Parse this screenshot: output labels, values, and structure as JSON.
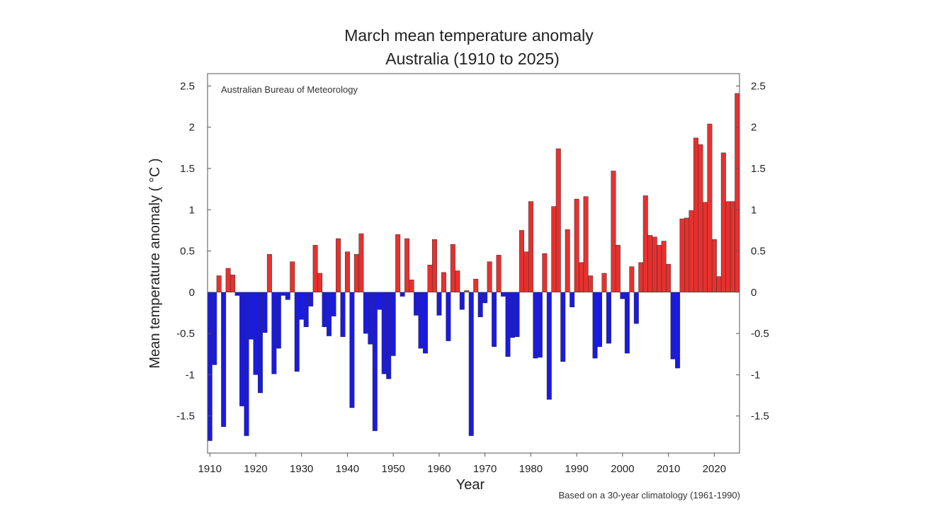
{
  "chart_data": {
    "type": "bar",
    "title": [
      "March mean temperature anomaly",
      "Australia (1910 to 2025)"
    ],
    "xlabel": "Year",
    "ylabel": "Mean temperature anomaly ( °C )",
    "source": "Australian Bureau of Meteorology",
    "footnote": "Based on a 30-year climatology (1961-1990)",
    "xlim": [
      1909.5,
      2025.5
    ],
    "ylim": [
      -1.95,
      2.65
    ],
    "x_ticks": [
      {
        "value": 1910,
        "label": "1910"
      },
      {
        "value": 1920,
        "label": "1920"
      },
      {
        "value": 1930,
        "label": "1930"
      },
      {
        "value": 1940,
        "label": "1940"
      },
      {
        "value": 1950,
        "label": "1950"
      },
      {
        "value": 1960,
        "label": "1960"
      },
      {
        "value": 1970,
        "label": "1970"
      },
      {
        "value": 1980,
        "label": "1980"
      },
      {
        "value": 1990,
        "label": "1990"
      },
      {
        "value": 2000,
        "label": "2000"
      },
      {
        "value": 2010,
        "label": "2010"
      },
      {
        "value": 2020,
        "label": "2020"
      }
    ],
    "y_ticks": [
      {
        "value": 2.5,
        "label": "2.5"
      },
      {
        "value": 2,
        "label": "2"
      },
      {
        "value": 1.5,
        "label": "1.5"
      },
      {
        "value": 1,
        "label": "1"
      },
      {
        "value": 0.5,
        "label": "0.5"
      },
      {
        "value": 0,
        "label": "0"
      },
      {
        "value": -0.5,
        "label": "-0.5"
      },
      {
        "value": -1,
        "label": "-1"
      },
      {
        "value": -1.5,
        "label": "-1.5"
      }
    ],
    "grid": false,
    "colors": {
      "positive": "#e8302e",
      "negative": "#1a1ae0",
      "edge": "#333333"
    },
    "x": [
      1910,
      1911,
      1912,
      1913,
      1914,
      1915,
      1916,
      1917,
      1918,
      1919,
      1920,
      1921,
      1922,
      1923,
      1924,
      1925,
      1926,
      1927,
      1928,
      1929,
      1930,
      1931,
      1932,
      1933,
      1934,
      1935,
      1936,
      1937,
      1938,
      1939,
      1940,
      1941,
      1942,
      1943,
      1944,
      1945,
      1946,
      1947,
      1948,
      1949,
      1950,
      1951,
      1952,
      1953,
      1954,
      1955,
      1956,
      1957,
      1958,
      1959,
      1960,
      1961,
      1962,
      1963,
      1964,
      1965,
      1966,
      1967,
      1968,
      1969,
      1970,
      1971,
      1972,
      1973,
      1974,
      1975,
      1976,
      1977,
      1978,
      1979,
      1980,
      1981,
      1982,
      1983,
      1984,
      1985,
      1986,
      1987,
      1988,
      1989,
      1990,
      1991,
      1992,
      1993,
      1994,
      1995,
      1996,
      1997,
      1998,
      1999,
      2000,
      2001,
      2002,
      2003,
      2004,
      2005,
      2006,
      2007,
      2008,
      2009,
      2010,
      2011,
      2012,
      2013,
      2014,
      2015,
      2016,
      2017,
      2018,
      2019,
      2020,
      2021,
      2022,
      2023,
      2024,
      2025
    ],
    "values": [
      -1.8,
      -0.88,
      0.2,
      -1.63,
      0.29,
      0.21,
      -0.04,
      -1.38,
      -1.74,
      -0.57,
      -1.0,
      -1.22,
      -0.49,
      0.46,
      -0.99,
      -0.68,
      -0.04,
      -0.09,
      0.37,
      -0.96,
      -0.33,
      -0.42,
      -0.17,
      0.57,
      0.23,
      -0.42,
      -0.53,
      -0.29,
      0.65,
      -0.54,
      0.49,
      -1.4,
      0.46,
      0.71,
      -0.5,
      -0.63,
      -1.68,
      -0.21,
      -0.99,
      -1.05,
      -0.77,
      0.7,
      -0.05,
      0.65,
      0.15,
      -0.28,
      -0.68,
      -0.74,
      0.33,
      0.64,
      -0.28,
      0.24,
      -0.59,
      0.58,
      0.26,
      -0.21,
      0.02,
      -1.74,
      0.16,
      -0.3,
      -0.13,
      0.37,
      -0.66,
      0.45,
      -0.05,
      -0.78,
      -0.55,
      -0.54,
      0.75,
      0.49,
      1.1,
      -0.8,
      -0.79,
      0.47,
      -1.3,
      1.04,
      1.74,
      -0.84,
      0.76,
      -0.18,
      1.13,
      0.36,
      1.16,
      0.2,
      -0.8,
      -0.66,
      0.23,
      -0.62,
      1.47,
      0.57,
      -0.08,
      -0.74,
      0.31,
      -0.38,
      0.36,
      1.17,
      0.69,
      0.67,
      0.57,
      0.62,
      0.34,
      -0.81,
      -0.92,
      0.89,
      0.9,
      0.99,
      1.87,
      1.79,
      1.09,
      2.04,
      0.64,
      0.19,
      1.69,
      1.1,
      1.1,
      2.41
    ]
  }
}
